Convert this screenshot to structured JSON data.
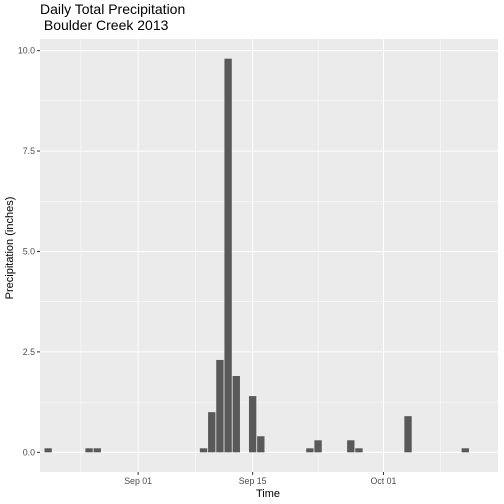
{
  "chart_data": {
    "type": "bar",
    "title": "Daily Total Precipitation",
    "subtitle": "Boulder Creek 2013",
    "xlabel": "Time",
    "ylabel": "Precipitation (inches)",
    "x_type": "date",
    "xlim": [
      "2013-08-20",
      "2013-10-15"
    ],
    "ylim": [
      -0.49,
      10.29
    ],
    "x_ticks": [
      {
        "date": "2013-09-01",
        "label": "Sep 01"
      },
      {
        "date": "2013-09-15",
        "label": "Sep 15"
      },
      {
        "date": "2013-10-01",
        "label": "Oct 01"
      }
    ],
    "y_ticks": [
      {
        "value": 0,
        "label": "0.0"
      },
      {
        "value": 2.5,
        "label": "2.5"
      },
      {
        "value": 5,
        "label": "5.0"
      },
      {
        "value": 7.5,
        "label": "7.5"
      },
      {
        "value": 10,
        "label": "10.0"
      }
    ],
    "grid": true,
    "legend": "none",
    "colors": {
      "bar": "#595959",
      "panel": "#ebebeb",
      "grid_major": "#ffffff",
      "tick": "#333333",
      "tick_label": "#4d4d4d",
      "text": "#000000"
    },
    "points": [
      {
        "date": "2013-08-21",
        "value": 0.1
      },
      {
        "date": "2013-08-26",
        "value": 0.1
      },
      {
        "date": "2013-08-27",
        "value": 0.1
      },
      {
        "date": "2013-09-09",
        "value": 0.1
      },
      {
        "date": "2013-09-10",
        "value": 1.0
      },
      {
        "date": "2013-09-11",
        "value": 2.3
      },
      {
        "date": "2013-09-12",
        "value": 9.8
      },
      {
        "date": "2013-09-13",
        "value": 1.9
      },
      {
        "date": "2013-09-15",
        "value": 1.4
      },
      {
        "date": "2013-09-16",
        "value": 0.4
      },
      {
        "date": "2013-09-22",
        "value": 0.1
      },
      {
        "date": "2013-09-23",
        "value": 0.3
      },
      {
        "date": "2013-09-27",
        "value": 0.3
      },
      {
        "date": "2013-09-28",
        "value": 0.1
      },
      {
        "date": "2013-10-04",
        "value": 0.9
      },
      {
        "date": "2013-10-11",
        "value": 0.1
      }
    ]
  }
}
